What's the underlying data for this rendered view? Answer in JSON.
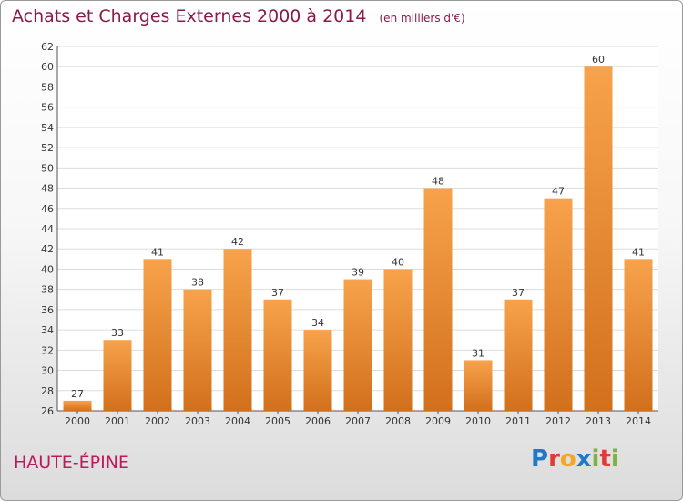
{
  "header": {
    "title": "Achats et Charges Externes 2000 à 2014",
    "subtitle": "(en milliers d'€)"
  },
  "footer": {
    "commune": "HAUTE-ÉPINE",
    "logo_text": "Proxiti",
    "logo_colors": [
      "#1f78c8",
      "#e53935",
      "#f5a623",
      "#1f78c8",
      "#7cb342",
      "#e53935",
      "#7cb342"
    ]
  },
  "chart_data": {
    "type": "bar",
    "title": "Achats et Charges Externes 2000 à 2014",
    "subtitle": "(en milliers d'€)",
    "xlabel": "",
    "ylabel": "",
    "categories": [
      "2000",
      "2001",
      "2002",
      "2003",
      "2004",
      "2005",
      "2006",
      "2007",
      "2008",
      "2009",
      "2010",
      "2011",
      "2012",
      "2013",
      "2014"
    ],
    "values": [
      27,
      33,
      41,
      38,
      42,
      37,
      34,
      39,
      40,
      48,
      31,
      37,
      47,
      60,
      41
    ],
    "ylim": [
      26,
      62
    ],
    "yticks": [
      26,
      28,
      30,
      32,
      34,
      36,
      38,
      40,
      42,
      44,
      46,
      48,
      50,
      52,
      54,
      56,
      58,
      60,
      62
    ],
    "grid": true,
    "bar_color_top": "#f7a24c",
    "bar_color_bottom": "#d2701c",
    "grid_color": "#dddddd"
  }
}
